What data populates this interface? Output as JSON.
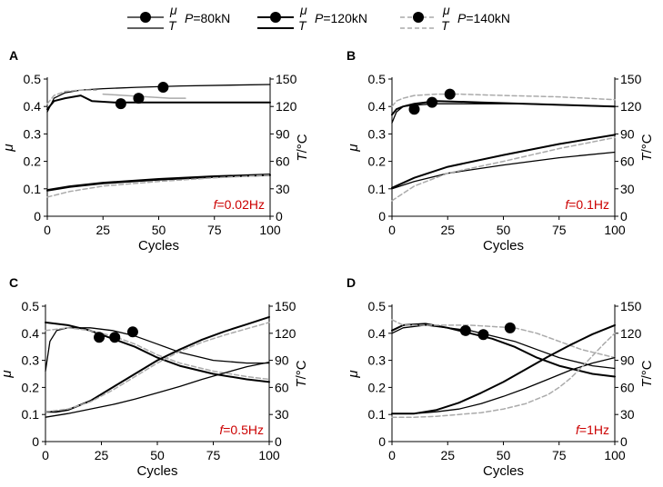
{
  "legend": {
    "entries": [
      {
        "mu_label": "μ",
        "t_label": "T",
        "p_label": "P=80kN",
        "style": "black-thin"
      },
      {
        "mu_label": "μ",
        "t_label": "T",
        "p_label": "P=120kN",
        "style": "black-dotted"
      },
      {
        "mu_label": "μ",
        "t_label": "T",
        "p_label": "P=140kN",
        "style": "gray-dashed"
      }
    ]
  },
  "colors": {
    "series_80": "#000000",
    "series_120": "#000000",
    "series_140": "#aaaaaa",
    "freq_label": "#cc0000"
  },
  "chart_data": [
    {
      "panel": "A",
      "type": "line",
      "freq_label": "f=0.02Hz",
      "xlabel": "Cycles",
      "ylabel_left": "μ",
      "ylabel_right": "T/°C",
      "xlim": [
        0,
        100
      ],
      "ylim_left": [
        0,
        0.5
      ],
      "ylim_right": [
        0,
        150
      ],
      "xticks": [
        0,
        25,
        50,
        75,
        100
      ],
      "yticks_left": [
        0,
        0.1,
        0.2,
        0.3,
        0.4,
        0.5
      ],
      "yticks_right": [
        0,
        30,
        60,
        90,
        120,
        150
      ],
      "series": [
        {
          "name": "μ P=80kN",
          "axis": "left",
          "style": "black-thin",
          "x": [
            0,
            3,
            8,
            15,
            25,
            40,
            60,
            100
          ],
          "y": [
            0.38,
            0.43,
            0.45,
            0.46,
            0.465,
            0.47,
            0.475,
            0.48
          ]
        },
        {
          "name": "μ P=120kN",
          "axis": "left",
          "style": "black-dotted",
          "x": [
            0,
            3,
            8,
            15,
            20,
            30,
            40,
            60,
            100
          ],
          "y": [
            0.39,
            0.42,
            0.43,
            0.44,
            0.42,
            0.415,
            0.415,
            0.415,
            0.415
          ]
        },
        {
          "name": "μ P=140kN",
          "axis": "left",
          "style": "gray-dashed",
          "x": [
            0,
            3,
            8,
            15,
            22
          ],
          "y": [
            0.41,
            0.44,
            0.455,
            0.46,
            0.46
          ]
        },
        {
          "name": "μ P=140kN (second run)",
          "axis": "left",
          "style": "gray-solid",
          "x": [
            25,
            35,
            45,
            55,
            62
          ],
          "y": [
            0.445,
            0.44,
            0.435,
            0.43,
            0.43
          ]
        },
        {
          "name": "T P=80kN",
          "axis": "right",
          "style": "black-thin",
          "x": [
            0,
            10,
            25,
            50,
            75,
            100
          ],
          "y": [
            29,
            33,
            37,
            41,
            44,
            46
          ]
        },
        {
          "name": "T P=120kN",
          "axis": "right",
          "style": "black-dotted",
          "x": [
            0,
            10,
            25,
            50,
            75,
            100
          ],
          "y": [
            28,
            32,
            36,
            40,
            43,
            45
          ]
        },
        {
          "name": "T P=140kN",
          "axis": "right",
          "style": "gray-dashed",
          "x": [
            0,
            10,
            25,
            50,
            75,
            100
          ],
          "y": [
            21,
            27,
            33,
            38,
            42,
            45
          ]
        }
      ],
      "markers": [
        {
          "x": 33,
          "y": 0.41
        },
        {
          "x": 41,
          "y": 0.43
        },
        {
          "x": 52,
          "y": 0.47
        }
      ]
    },
    {
      "panel": "B",
      "type": "line",
      "freq_label": "f=0.1Hz",
      "xlabel": "Cycles",
      "ylabel_left": "μ",
      "ylabel_right": "T/°C",
      "xlim": [
        0,
        100
      ],
      "ylim_left": [
        0,
        0.5
      ],
      "ylim_right": [
        0,
        150
      ],
      "xticks": [
        0,
        25,
        50,
        75,
        100
      ],
      "yticks_left": [
        0,
        0.1,
        0.2,
        0.3,
        0.4,
        0.5
      ],
      "yticks_right": [
        0,
        30,
        60,
        90,
        120,
        150
      ],
      "series": [
        {
          "name": "μ P=80kN",
          "axis": "left",
          "style": "black-thin",
          "x": [
            0,
            2,
            5,
            10,
            20,
            40,
            60,
            80,
            100
          ],
          "y": [
            0.34,
            0.38,
            0.4,
            0.405,
            0.41,
            0.41,
            0.41,
            0.405,
            0.4
          ]
        },
        {
          "name": "μ P=120kN",
          "axis": "left",
          "style": "black-dotted",
          "x": [
            0,
            2,
            5,
            10,
            20,
            40,
            60,
            80,
            100
          ],
          "y": [
            0.37,
            0.39,
            0.4,
            0.41,
            0.42,
            0.415,
            0.41,
            0.405,
            0.4
          ]
        },
        {
          "name": "μ P=140kN",
          "axis": "left",
          "style": "gray-dashed",
          "x": [
            0,
            2,
            5,
            10,
            20,
            30,
            50,
            75,
            100
          ],
          "y": [
            0.4,
            0.42,
            0.43,
            0.44,
            0.445,
            0.445,
            0.44,
            0.435,
            0.425
          ]
        },
        {
          "name": "T P=80kN",
          "axis": "right",
          "style": "black-thin",
          "x": [
            0,
            10,
            25,
            50,
            75,
            100
          ],
          "y": [
            30,
            38,
            47,
            56,
            64,
            70
          ]
        },
        {
          "name": "T P=120kN",
          "axis": "right",
          "style": "black-dotted",
          "x": [
            0,
            10,
            25,
            50,
            75,
            100
          ],
          "y": [
            31,
            42,
            54,
            67,
            79,
            89
          ]
        },
        {
          "name": "T P=140kN",
          "axis": "right",
          "style": "gray-dashed",
          "x": [
            0,
            10,
            25,
            50,
            75,
            100
          ],
          "y": [
            17,
            33,
            47,
            60,
            74,
            86
          ]
        }
      ],
      "markers": [
        {
          "x": 10,
          "y": 0.39
        },
        {
          "x": 18,
          "y": 0.415
        },
        {
          "x": 26,
          "y": 0.445
        }
      ]
    },
    {
      "panel": "C",
      "type": "line",
      "freq_label": "f=0.5Hz",
      "xlabel": "Cycles",
      "ylabel_left": "μ",
      "ylabel_right": "T/°C",
      "xlim": [
        0,
        100
      ],
      "ylim_left": [
        0,
        0.5
      ],
      "ylim_right": [
        0,
        150
      ],
      "xticks": [
        0,
        25,
        50,
        75,
        100
      ],
      "yticks_left": [
        0,
        0.1,
        0.2,
        0.3,
        0.4,
        0.5
      ],
      "yticks_right": [
        0,
        30,
        60,
        90,
        120,
        150
      ],
      "series": [
        {
          "name": "μ P=80kN",
          "axis": "left",
          "style": "black-thin",
          "x": [
            0,
            2,
            5,
            10,
            20,
            30,
            40,
            50,
            60,
            75,
            90,
            100
          ],
          "y": [
            0.26,
            0.37,
            0.41,
            0.42,
            0.42,
            0.41,
            0.39,
            0.36,
            0.33,
            0.3,
            0.29,
            0.29
          ]
        },
        {
          "name": "μ P=120kN",
          "axis": "left",
          "style": "black-dotted",
          "x": [
            0,
            10,
            20,
            30,
            40,
            50,
            60,
            75,
            90,
            100
          ],
          "y": [
            0.44,
            0.43,
            0.41,
            0.38,
            0.35,
            0.31,
            0.28,
            0.25,
            0.23,
            0.22
          ]
        },
        {
          "name": "μ P=140kN",
          "axis": "left",
          "style": "gray-dashed",
          "x": [
            0,
            10,
            20,
            30,
            40,
            50,
            60,
            75,
            90,
            100
          ],
          "y": [
            0.41,
            0.42,
            0.41,
            0.39,
            0.36,
            0.32,
            0.29,
            0.26,
            0.24,
            0.23
          ]
        },
        {
          "name": "T P=80kN",
          "axis": "right",
          "style": "black-thin",
          "x": [
            0,
            10,
            20,
            30,
            40,
            50,
            60,
            70,
            80,
            90,
            100
          ],
          "y": [
            27,
            31,
            36,
            41,
            47,
            54,
            61,
            69,
            76,
            83,
            88
          ]
        },
        {
          "name": "T P=120kN",
          "axis": "right",
          "style": "black-dotted",
          "x": [
            0,
            5,
            10,
            20,
            30,
            40,
            50,
            60,
            70,
            80,
            90,
            100
          ],
          "y": [
            33,
            33,
            35,
            45,
            60,
            75,
            90,
            102,
            113,
            122,
            130,
            138
          ]
        },
        {
          "name": "T P=140kN",
          "axis": "right",
          "style": "gray-dashed",
          "x": [
            0,
            10,
            20,
            30,
            40,
            50,
            60,
            70,
            80,
            90,
            100
          ],
          "y": [
            33,
            36,
            44,
            57,
            72,
            87,
            100,
            110,
            118,
            125,
            132
          ]
        }
      ],
      "markers": [
        {
          "x": 24,
          "y": 0.385
        },
        {
          "x": 31,
          "y": 0.385
        },
        {
          "x": 39,
          "y": 0.405
        }
      ]
    },
    {
      "panel": "D",
      "type": "line",
      "freq_label": "f=1Hz",
      "xlabel": "Cycles",
      "ylabel_left": "μ",
      "ylabel_right": "T/°C",
      "xlim": [
        0,
        100
      ],
      "ylim_left": [
        0,
        0.5
      ],
      "ylim_right": [
        0,
        150
      ],
      "xticks": [
        0,
        25,
        50,
        75,
        100
      ],
      "yticks_left": [
        0,
        0.1,
        0.2,
        0.3,
        0.4,
        0.5
      ],
      "yticks_right": [
        0,
        30,
        60,
        90,
        120,
        150
      ],
      "series": [
        {
          "name": "μ P=80kN",
          "axis": "left",
          "style": "black-thin",
          "x": [
            0,
            5,
            15,
            25,
            35,
            45,
            55,
            65,
            75,
            90,
            100
          ],
          "y": [
            0.4,
            0.42,
            0.43,
            0.42,
            0.41,
            0.39,
            0.37,
            0.34,
            0.31,
            0.28,
            0.27
          ]
        },
        {
          "name": "μ P=120kN",
          "axis": "left",
          "style": "black-dotted",
          "x": [
            0,
            5,
            15,
            25,
            35,
            45,
            55,
            65,
            75,
            90,
            100
          ],
          "y": [
            0.41,
            0.43,
            0.435,
            0.42,
            0.4,
            0.38,
            0.35,
            0.31,
            0.28,
            0.25,
            0.24
          ]
        },
        {
          "name": "μ P=140kN",
          "axis": "left",
          "style": "gray-dashed",
          "x": [
            0,
            5,
            15,
            25,
            35,
            45,
            55,
            65,
            75,
            85,
            100
          ],
          "y": [
            0.45,
            0.43,
            0.43,
            0.43,
            0.43,
            0.425,
            0.42,
            0.4,
            0.37,
            0.34,
            0.31
          ]
        },
        {
          "name": "T P=80kN",
          "axis": "right",
          "style": "black-thin",
          "x": [
            0,
            10,
            20,
            30,
            40,
            50,
            60,
            70,
            80,
            90,
            100
          ],
          "y": [
            31,
            31,
            33,
            36,
            42,
            50,
            59,
            69,
            79,
            87,
            93
          ]
        },
        {
          "name": "T P=120kN",
          "axis": "right",
          "style": "black-dotted",
          "x": [
            0,
            10,
            20,
            30,
            40,
            50,
            60,
            70,
            80,
            90,
            100
          ],
          "y": [
            31,
            31,
            35,
            43,
            54,
            66,
            80,
            94,
            107,
            119,
            129
          ]
        },
        {
          "name": "T P=140kN",
          "axis": "right",
          "style": "gray-dashed",
          "x": [
            0,
            10,
            20,
            30,
            40,
            50,
            60,
            70,
            75,
            80,
            85,
            90,
            95,
            100
          ],
          "y": [
            27,
            27,
            28,
            30,
            32,
            36,
            42,
            52,
            60,
            70,
            82,
            95,
            108,
            120
          ]
        }
      ],
      "markers": [
        {
          "x": 33,
          "y": 0.41
        },
        {
          "x": 41,
          "y": 0.395
        },
        {
          "x": 53,
          "y": 0.42
        }
      ]
    }
  ]
}
